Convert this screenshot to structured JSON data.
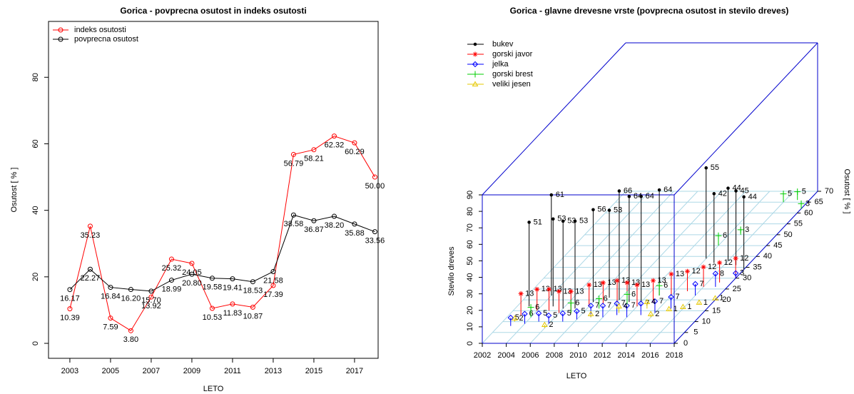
{
  "chart_data": [
    {
      "type": "line",
      "title": "Gorica - povprecna osutost in indeks osutosti",
      "x_label": "LETO",
      "y_label": "Osutost [ % ]",
      "x": [
        2003,
        2004,
        2005,
        2006,
        2007,
        2008,
        2009,
        2010,
        2011,
        2012,
        2013,
        2014,
        2015,
        2016,
        2017,
        2018
      ],
      "series": [
        {
          "name": "indeks osutosti",
          "color": "#ff0000",
          "values": [
            10.39,
            35.23,
            7.59,
            3.8,
            13.92,
            25.32,
            24.05,
            10.53,
            11.83,
            10.87,
            17.39,
            56.79,
            58.21,
            62.32,
            60.29,
            50.0
          ],
          "value_labels": [
            "10.39",
            "35.23",
            "7.59",
            "3.80",
            "13.92",
            "25.32",
            "24.05",
            "10.53",
            "11.83",
            "10.87",
            "17.39",
            "56.79",
            "58.21",
            "62.32",
            "60.29",
            "50.00"
          ]
        },
        {
          "name": "povprecna osutost",
          "color": "#000000",
          "values": [
            16.17,
            22.27,
            16.84,
            16.2,
            15.7,
            18.99,
            20.8,
            19.58,
            19.41,
            18.53,
            21.58,
            38.58,
            36.87,
            38.2,
            35.88,
            33.56
          ],
          "value_labels": [
            "16.17",
            "22.27",
            "16.84",
            "16.20",
            "15.70",
            "18.99",
            "20.80",
            "19.58",
            "19.41",
            "18.53",
            "21.58",
            "38.58",
            "36.87",
            "38.20",
            "35.88",
            "33.56"
          ]
        }
      ],
      "xlim": [
        2001.95,
        2018.16
      ],
      "xticks": [
        2003,
        2005,
        2007,
        2009,
        2011,
        2013,
        2015,
        2017
      ],
      "ylim": [
        -4.5,
        96.8
      ],
      "yticks": [
        0,
        20,
        40,
        60,
        80
      ],
      "legend": "top-left"
    },
    {
      "type": "scatter3d",
      "title": "Gorica - glavne drevesne vrste (povprecna osutost in stevilo dreves)",
      "x_label": "LETO",
      "y_label": "Osutost [ % ]",
      "z_label": "Stevilo dreves",
      "series": [
        {
          "name": "bukev",
          "color": "#000000",
          "marker": "dot",
          "x": [
            2003,
            2004,
            2005,
            2006,
            2007,
            2008,
            2009,
            2010,
            2011,
            2012,
            2013,
            2014,
            2015,
            2016,
            2017,
            2018
          ],
          "y": [
            17,
            22,
            17,
            16,
            16,
            19,
            21,
            20,
            19,
            19,
            22,
            39,
            37,
            38,
            36,
            34
          ],
          "z": [
            51,
            61,
            53,
            53,
            53,
            56,
            53,
            66,
            64,
            64,
            64,
            55,
            42,
            44,
            45,
            44
          ]
        },
        {
          "name": "gorski javor",
          "color": "#ff0000",
          "marker": "asterisk",
          "x": [
            2003,
            2004,
            2005,
            2006,
            2007,
            2008,
            2009,
            2010,
            2011,
            2012,
            2013,
            2014,
            2015,
            2016,
            2017,
            2018
          ],
          "y": [
            13,
            15,
            15,
            14,
            14,
            17,
            18,
            19,
            18,
            17,
            19,
            22,
            24,
            26,
            28,
            30
          ],
          "z": [
            13,
            13,
            13,
            13,
            13,
            13,
            13,
            13,
            13,
            13,
            13,
            13,
            12,
            12,
            12,
            12
          ]
        },
        {
          "name": "jelka",
          "color": "#0000ff",
          "marker": "diamond",
          "x": [
            2003,
            2004,
            2005,
            2006,
            2007,
            2008,
            2009,
            2010,
            2011,
            2012,
            2013,
            2014,
            2015,
            2016,
            2017,
            2018
          ],
          "y": [
            8,
            9,
            10,
            9,
            10,
            11,
            12,
            12,
            13,
            12,
            13,
            14,
            16,
            22,
            26,
            30
          ],
          "z": [
            5,
            6,
            5,
            5,
            5,
            5,
            7,
            7,
            7,
            7,
            7,
            7,
            7,
            7,
            8,
            3
          ]
        },
        {
          "name": "gorski brest",
          "color": "#00cd00",
          "marker": "plus",
          "x": [
            2004,
            2007,
            2009,
            2011,
            2013,
            2014,
            2015,
            2016,
            2017,
            2018
          ],
          "y": [
            12,
            14,
            16,
            18,
            22,
            45,
            50,
            65,
            66,
            62
          ],
          "z": [
            6,
            6,
            6,
            6,
            6,
            6,
            3,
            5,
            5,
            3
          ]
        },
        {
          "name": "veliki jesen",
          "color": "#e6c800",
          "marker": "triangle",
          "x": [
            2003,
            2006,
            2009,
            2011,
            2013,
            2014,
            2015,
            2016,
            2017,
            2018
          ],
          "y": [
            10,
            7,
            12,
            14,
            16,
            12,
            15,
            16,
            18,
            20
          ],
          "z": [
            2,
            2,
            2,
            4,
            4,
            2,
            1,
            1,
            1,
            1
          ]
        }
      ],
      "xlim": [
        2002,
        2018
      ],
      "xticks": [
        2002,
        2004,
        2006,
        2008,
        2010,
        2012,
        2014,
        2016,
        2018
      ],
      "ylim": [
        0,
        70
      ],
      "yticks": [
        0,
        5,
        10,
        15,
        20,
        25,
        30,
        35,
        40,
        45,
        50,
        55,
        60,
        65,
        70
      ],
      "zlim": [
        0,
        90
      ],
      "zticks": [
        0,
        10,
        20,
        30,
        40,
        50,
        60,
        70,
        80,
        90
      ],
      "grid": true,
      "box_color": "#0000cd",
      "grid_color": "#add8e6",
      "legend": "top-left"
    }
  ]
}
